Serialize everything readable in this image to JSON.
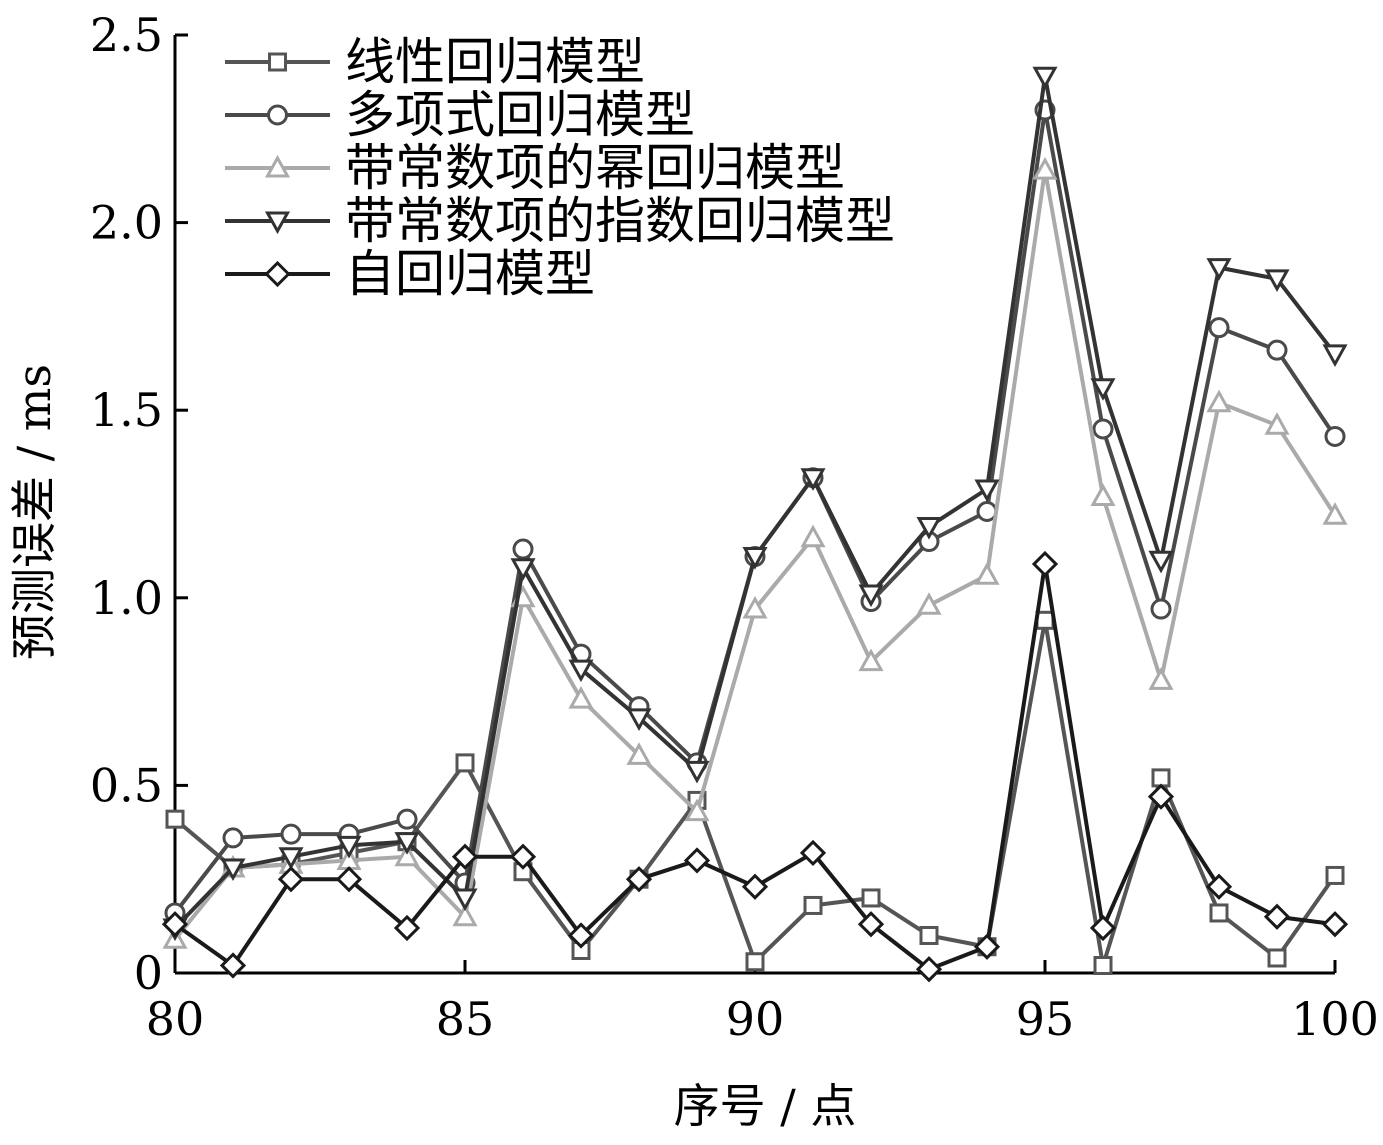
{
  "chart_data": {
    "type": "line",
    "title": "",
    "xlabel": "序号 / 点",
    "ylabel": "预测误差 / ms",
    "xlim": [
      80,
      100
    ],
    "ylim": [
      0,
      2.5
    ],
    "xticks": [
      80,
      85,
      90,
      95,
      100
    ],
    "xtick_labels": [
      "80",
      "85",
      "90",
      "95",
      "100"
    ],
    "yticks": [
      0,
      0.5,
      1.0,
      1.5,
      2.0,
      2.5
    ],
    "ytick_labels": [
      "0",
      "0.5",
      "1.0",
      "1.5",
      "2.0",
      "2.5"
    ],
    "grid": false,
    "legend_position": "top-left",
    "x": [
      80,
      81,
      82,
      83,
      84,
      85,
      86,
      87,
      88,
      89,
      90,
      91,
      92,
      93,
      94,
      95,
      96,
      97,
      98,
      99,
      100
    ],
    "series": [
      {
        "name": "线性回归模型",
        "marker": "square",
        "color": "#555555",
        "values": [
          0.41,
          0.28,
          0.29,
          0.32,
          0.35,
          0.56,
          0.27,
          0.06,
          0.25,
          0.46,
          0.03,
          0.18,
          0.2,
          0.1,
          0.07,
          0.94,
          0.02,
          0.52,
          0.16,
          0.04,
          0.26
        ]
      },
      {
        "name": "多项式回归模型",
        "marker": "circle",
        "color": "#4a4a4a",
        "values": [
          0.16,
          0.36,
          0.37,
          0.37,
          0.41,
          0.24,
          1.13,
          0.85,
          0.71,
          0.56,
          1.11,
          1.32,
          0.99,
          1.15,
          1.23,
          2.3,
          1.45,
          0.97,
          1.72,
          1.66,
          1.43
        ]
      },
      {
        "name": "带常数项的幂回归模型",
        "marker": "triangle-up",
        "color": "#aaaaaa",
        "values": [
          0.09,
          0.28,
          0.29,
          0.3,
          0.31,
          0.15,
          1.0,
          0.73,
          0.58,
          0.43,
          0.97,
          1.16,
          0.83,
          0.98,
          1.06,
          2.14,
          1.27,
          0.78,
          1.52,
          1.46,
          1.22
        ]
      },
      {
        "name": "带常数项的指数回归模型",
        "marker": "triangle-down",
        "color": "#333333",
        "values": [
          0.12,
          0.28,
          0.31,
          0.34,
          0.35,
          0.2,
          1.08,
          0.81,
          0.68,
          0.54,
          1.11,
          1.32,
          1.01,
          1.19,
          1.29,
          2.39,
          1.56,
          1.1,
          1.88,
          1.85,
          1.65
        ]
      },
      {
        "name": "自回归模型",
        "marker": "diamond",
        "color": "#1a1a1a",
        "values": [
          0.13,
          0.02,
          0.25,
          0.25,
          0.12,
          0.31,
          0.31,
          0.1,
          0.25,
          0.3,
          0.23,
          0.32,
          0.13,
          0.01,
          0.07,
          1.09,
          0.12,
          0.47,
          0.23,
          0.15,
          0.13
        ]
      }
    ]
  }
}
